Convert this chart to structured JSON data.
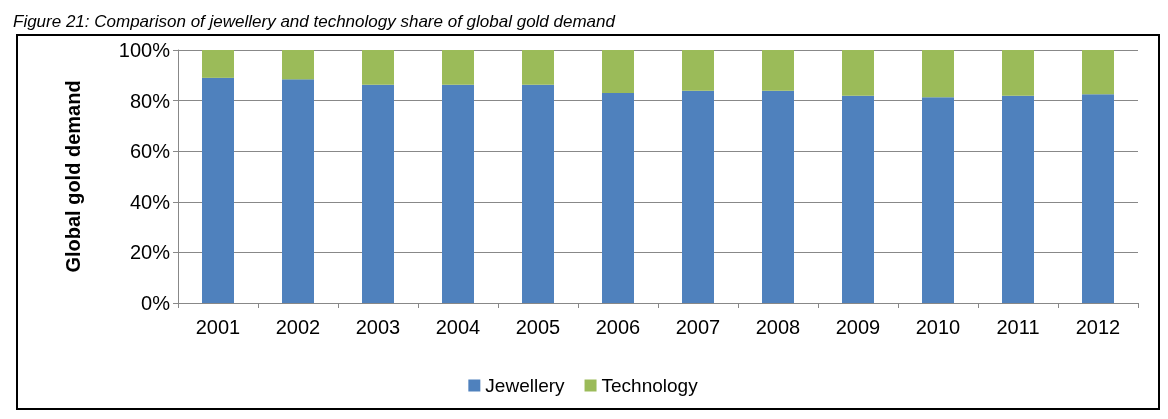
{
  "chart_data": {
    "type": "bar",
    "stacked": true,
    "title": "Figure 21: Comparison of jewellery and technology share of global gold demand",
    "ylabel": "Global gold demand",
    "categories": [
      "2001",
      "2002",
      "2003",
      "2004",
      "2005",
      "2006",
      "2007",
      "2008",
      "2009",
      "2010",
      "2011",
      "2012"
    ],
    "series": [
      {
        "name": "Jewellery",
        "color": "#4f81bd",
        "values": [
          89,
          88.4,
          86.3,
          86.3,
          86.3,
          83,
          83.9,
          83.9,
          81.9,
          81.3,
          81.9,
          82.5
        ]
      },
      {
        "name": "Technology",
        "color": "#9bbb59",
        "values": [
          11,
          11.6,
          13.7,
          13.7,
          13.7,
          17,
          16.1,
          16.1,
          18.1,
          18.7,
          18.1,
          17.5
        ]
      }
    ],
    "ylim": [
      0,
      100
    ],
    "yticks": [
      {
        "value": 0,
        "label": "0%"
      },
      {
        "value": 20,
        "label": "20%"
      },
      {
        "value": 40,
        "label": "40%"
      },
      {
        "value": 60,
        "label": "60%"
      },
      {
        "value": 80,
        "label": "80%"
      },
      {
        "value": 100,
        "label": "100%"
      }
    ],
    "grid": "y",
    "legend": "bottom"
  }
}
